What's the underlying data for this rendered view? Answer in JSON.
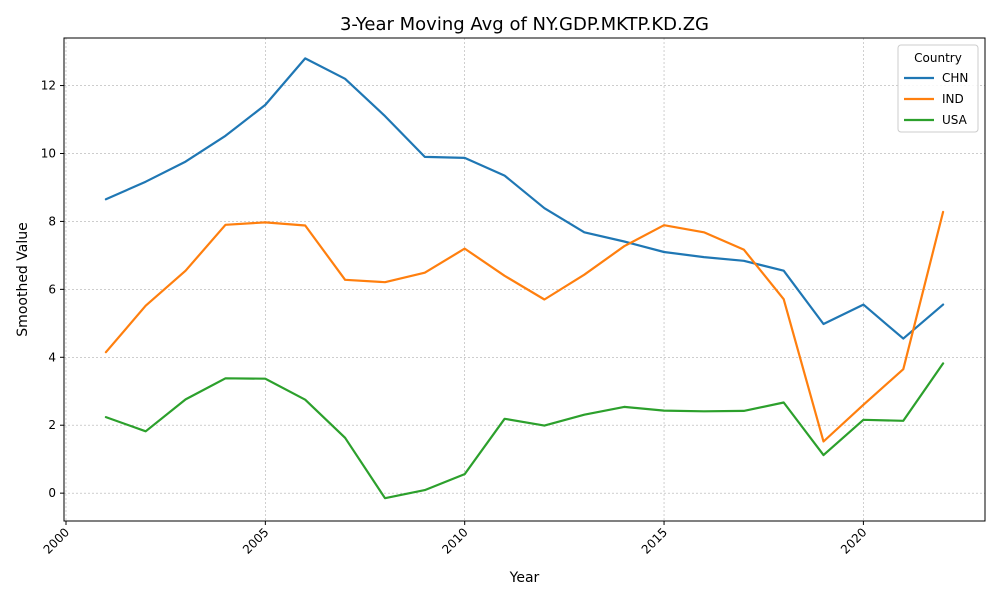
{
  "chart_data": {
    "type": "line",
    "title": "3-Year Moving Avg of NY.GDP.MKTP.KD.ZG",
    "xlabel": "Year",
    "ylabel": "Smoothed Value",
    "xlim": [
      1999.95,
      2023.05
    ],
    "ylim": [
      -0.82,
      13.4
    ],
    "xticks": [
      2000,
      2005,
      2010,
      2015,
      2020
    ],
    "yticks": [
      0,
      2,
      4,
      6,
      8,
      10,
      12
    ],
    "grid": true,
    "legend": {
      "title": "Country",
      "placement": "top-right"
    },
    "x": [
      2001,
      2002,
      2003,
      2004,
      2005,
      2006,
      2007,
      2008,
      2009,
      2010,
      2011,
      2012,
      2013,
      2014,
      2015,
      2016,
      2017,
      2018,
      2019,
      2020,
      2021,
      2022
    ],
    "series": [
      {
        "name": "CHN",
        "color": "#1f77b4",
        "values": [
          8.65,
          9.17,
          9.76,
          10.52,
          11.43,
          12.8,
          12.2,
          11.1,
          9.9,
          9.87,
          9.35,
          8.39,
          7.68,
          7.41,
          7.1,
          6.95,
          6.84,
          6.55,
          4.98,
          5.55,
          4.55,
          5.55
        ]
      },
      {
        "name": "IND",
        "color": "#ff7f0e",
        "values": [
          4.15,
          5.52,
          6.55,
          7.9,
          7.97,
          7.88,
          6.28,
          6.21,
          6.49,
          7.2,
          6.4,
          5.7,
          6.43,
          7.27,
          7.89,
          7.68,
          7.17,
          5.71,
          1.52,
          2.6,
          3.65,
          8.28
        ]
      },
      {
        "name": "USA",
        "color": "#2ca02c",
        "values": [
          2.24,
          1.82,
          2.76,
          3.38,
          3.37,
          2.75,
          1.63,
          -0.15,
          0.09,
          0.56,
          2.19,
          1.99,
          2.31,
          2.54,
          2.43,
          2.41,
          2.42,
          2.67,
          1.12,
          2.16,
          2.13,
          3.82
        ]
      }
    ]
  }
}
